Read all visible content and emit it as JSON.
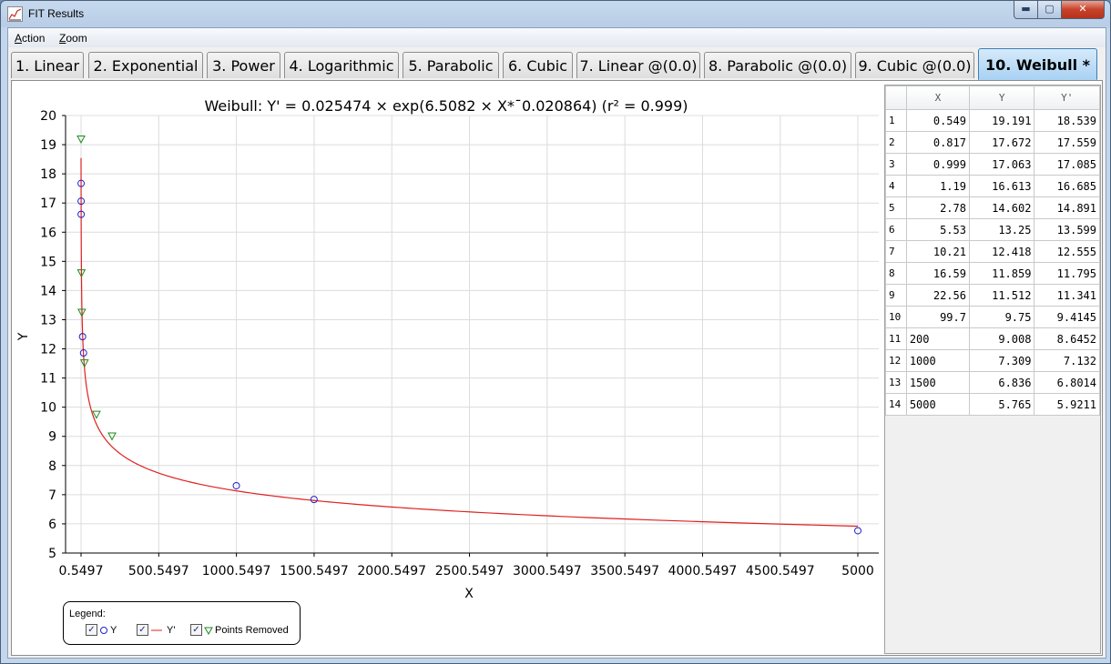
{
  "window": {
    "title": "FIT Results"
  },
  "window_controls": {
    "minimize": "▬",
    "maximize": "▢",
    "close": "✕"
  },
  "menu": [
    {
      "first": "A",
      "rest": "ction"
    },
    {
      "first": "Z",
      "rest": "oom"
    }
  ],
  "tabs": [
    "1. Linear",
    "2. Exponential",
    "3. Power",
    "4. Logarithmic",
    "5. Parabolic",
    "6. Cubic",
    "7. Linear @(0.0)",
    "8. Parabolic @(0.0)",
    "9. Cubic @(0.0)",
    "10. Weibull *"
  ],
  "active_tab": 9,
  "chart_data": {
    "type": "scatter",
    "title": "Weibull: Y' = 0.025474 × exp(6.5082 × X*¯0.020864) (r² = 0.999)",
    "xlabel": "X",
    "ylabel": "Y",
    "xlim": [
      0.5497,
      5000
    ],
    "ylim": [
      5,
      20
    ],
    "x_ticks": [
      "0.5497",
      "500.5497",
      "1000.5497",
      "1500.5497",
      "2000.5497",
      "2500.5497",
      "3000.5497",
      "3500.5497",
      "4000.5497",
      "4500.5497",
      "5000"
    ],
    "y_ticks": [
      5,
      6,
      7,
      8,
      9,
      10,
      11,
      12,
      13,
      14,
      15,
      16,
      17,
      18,
      19,
      20
    ],
    "grid": true,
    "series": [
      {
        "name": "Y",
        "marker": "circle",
        "color": "#2020c8",
        "x": [
          0.817,
          0.999,
          1.19,
          10.21,
          16.59,
          1000,
          1500,
          5000
        ],
        "y": [
          17.672,
          17.063,
          16.613,
          12.418,
          11.859,
          7.309,
          6.836,
          5.765
        ]
      },
      {
        "name": "Y'",
        "type": "line",
        "color": "#e02020",
        "model": {
          "a": 0.025474,
          "b": 6.5082,
          "c": -0.020864
        }
      },
      {
        "name": "Points Removed",
        "marker": "triangle-down",
        "color": "#1a8a1a",
        "x": [
          0.549,
          2.78,
          5.53,
          22.56,
          99.7,
          200
        ],
        "y": [
          19.191,
          14.602,
          13.25,
          11.512,
          9.75,
          9.008
        ]
      }
    ],
    "legend_position": "bottom-left"
  },
  "legend": {
    "title": "Legend:",
    "items": [
      "Y",
      "Y'",
      "Points Removed"
    ]
  },
  "table": {
    "headers": [
      "",
      "X",
      "Y",
      "Y'"
    ],
    "rows": [
      [
        "1",
        "0.549",
        "19.191",
        "18.539"
      ],
      [
        "2",
        "0.817",
        "17.672",
        "17.559"
      ],
      [
        "3",
        "0.999",
        "17.063",
        "17.085"
      ],
      [
        "4",
        "1.19",
        "16.613",
        "16.685"
      ],
      [
        "5",
        "2.78",
        "14.602",
        "14.891"
      ],
      [
        "6",
        "5.53",
        "13.25",
        "13.599"
      ],
      [
        "7",
        "10.21",
        "12.418",
        "12.555"
      ],
      [
        "8",
        "16.59",
        "11.859",
        "11.795"
      ],
      [
        "9",
        "22.56",
        "11.512",
        "11.341"
      ],
      [
        "10",
        "99.7",
        "9.75",
        "9.4145"
      ],
      [
        "11",
        "200",
        "9.008",
        "8.6452"
      ],
      [
        "12",
        "1000",
        "7.309",
        "7.132"
      ],
      [
        "13",
        "1500",
        "6.836",
        "6.8014"
      ],
      [
        "14",
        "5000",
        "5.765",
        "5.9211"
      ]
    ]
  }
}
